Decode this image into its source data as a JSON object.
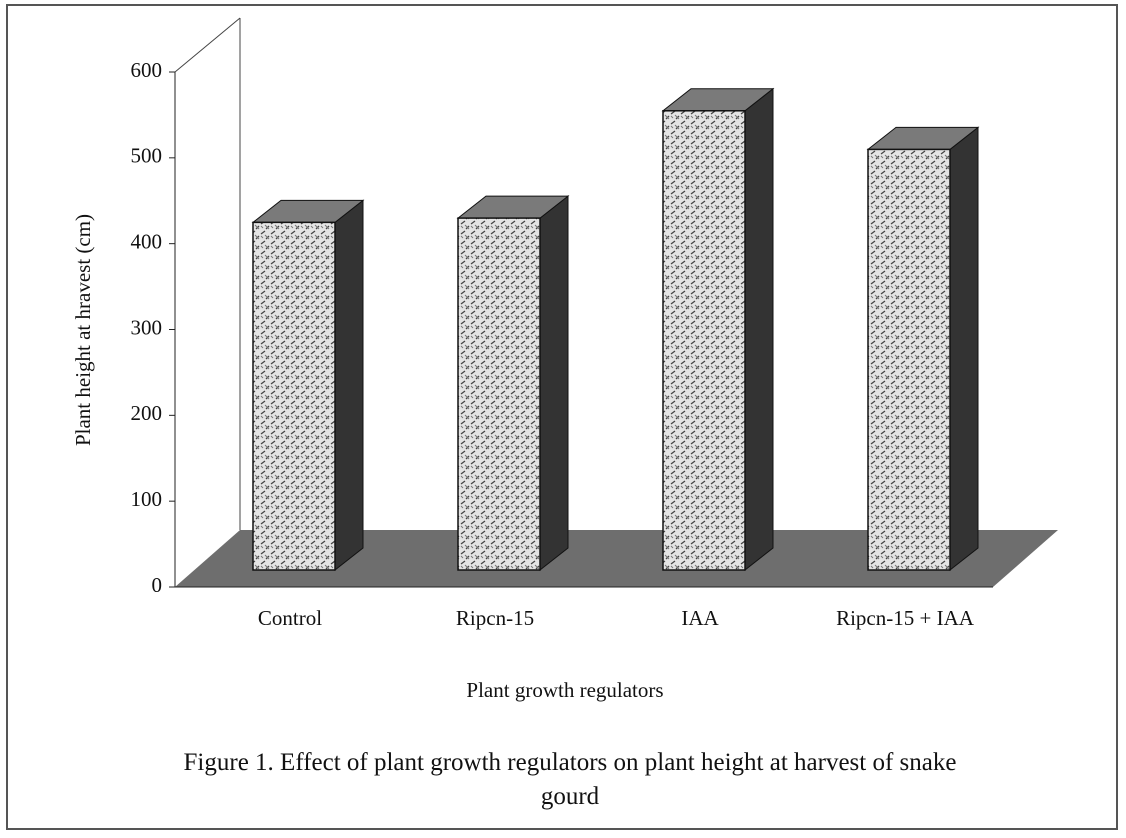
{
  "chart_data": {
    "type": "bar3d",
    "caption": "Figure 1. Effect of plant growth regulators on plant height at harvest of snake gourd",
    "ylabel": "Plant height at hravest (cm)",
    "xlabel": "Plant growth regulators",
    "categories": [
      "Control",
      "Ripcn-15",
      "IAA",
      "Ripcn-15 + IAA"
    ],
    "values": [
      405,
      410,
      535,
      490
    ],
    "ylim": [
      0,
      600
    ],
    "yticks": [
      0,
      100,
      200,
      300,
      400,
      500,
      600
    ],
    "grid": false
  }
}
